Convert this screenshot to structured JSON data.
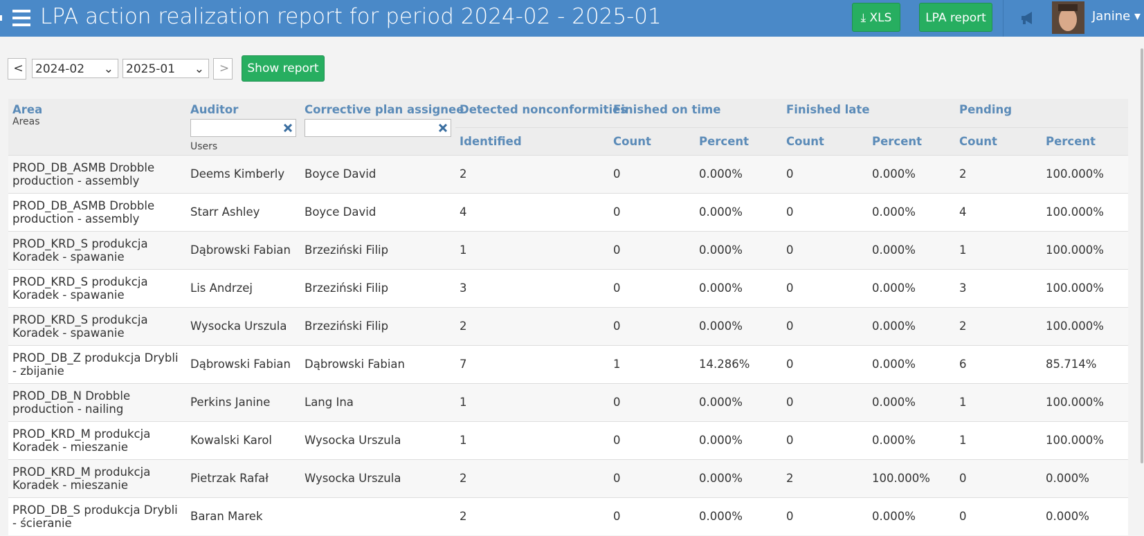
{
  "header": {
    "title": "LPA action realization report for period 2024-02 - 2025-01",
    "xls": "XLS",
    "lpa_report": "LPA report",
    "user": "Janine"
  },
  "filters": {
    "prev": "<",
    "from": "2024-02",
    "to": "2025-01",
    "next": ">",
    "show": "Show report"
  },
  "table": {
    "columns": {
      "area": "Area",
      "area_filter": "Areas",
      "auditor": "Auditor",
      "auditor_filter": "Users",
      "assignee": "Corrective plan assignee",
      "detected": "Detected nonconformities",
      "on_time": "Finished on time",
      "late": "Finished late",
      "pending": "Pending"
    },
    "subcolumns": [
      "Identified",
      "Count",
      "Percent",
      "Count",
      "Percent",
      "Count",
      "Percent"
    ],
    "rows": [
      [
        "PROD_DB_ASMB Drobble production - assembly",
        "Deems Kimberly",
        "Boyce David",
        "2",
        "0",
        "0.000%",
        "0",
        "0.000%",
        "2",
        "100.000%"
      ],
      [
        "PROD_DB_ASMB Drobble production - assembly",
        "Starr Ashley",
        "Boyce David",
        "4",
        "0",
        "0.000%",
        "0",
        "0.000%",
        "4",
        "100.000%"
      ],
      [
        "PROD_KRD_S produkcja Koradek - spawanie",
        "Dąbrowski Fabian",
        "Brzeziński Filip",
        "1",
        "0",
        "0.000%",
        "0",
        "0.000%",
        "1",
        "100.000%"
      ],
      [
        "PROD_KRD_S produkcja Koradek - spawanie",
        "Lis Andrzej",
        "Brzeziński Filip",
        "3",
        "0",
        "0.000%",
        "0",
        "0.000%",
        "3",
        "100.000%"
      ],
      [
        "PROD_KRD_S produkcja Koradek - spawanie",
        "Wysocka Urszula",
        "Brzeziński Filip",
        "2",
        "0",
        "0.000%",
        "0",
        "0.000%",
        "2",
        "100.000%"
      ],
      [
        "PROD_DB_Z produkcja Drybli - zbijanie",
        "Dąbrowski Fabian",
        "Dąbrowski Fabian",
        "7",
        "1",
        "14.286%",
        "0",
        "0.000%",
        "6",
        "85.714%"
      ],
      [
        "PROD_DB_N Drobble production - nailing",
        "Perkins Janine",
        "Lang Ina",
        "1",
        "0",
        "0.000%",
        "0",
        "0.000%",
        "1",
        "100.000%"
      ],
      [
        "PROD_KRD_M produkcja Koradek - mieszanie",
        "Kowalski Karol",
        "Wysocka Urszula",
        "1",
        "0",
        "0.000%",
        "0",
        "0.000%",
        "1",
        "100.000%"
      ],
      [
        "PROD_KRD_M produkcja Koradek - mieszanie",
        "Pietrzak Rafał",
        "Wysocka Urszula",
        "2",
        "0",
        "0.000%",
        "2",
        "100.000%",
        "0",
        "0.000%"
      ],
      [
        "PROD_DB_S produkcja Drybli - ścieranie",
        "Baran Marek",
        "",
        "2",
        "0",
        "0.000%",
        "0",
        "0.000%",
        "0",
        "0.000%"
      ]
    ]
  }
}
